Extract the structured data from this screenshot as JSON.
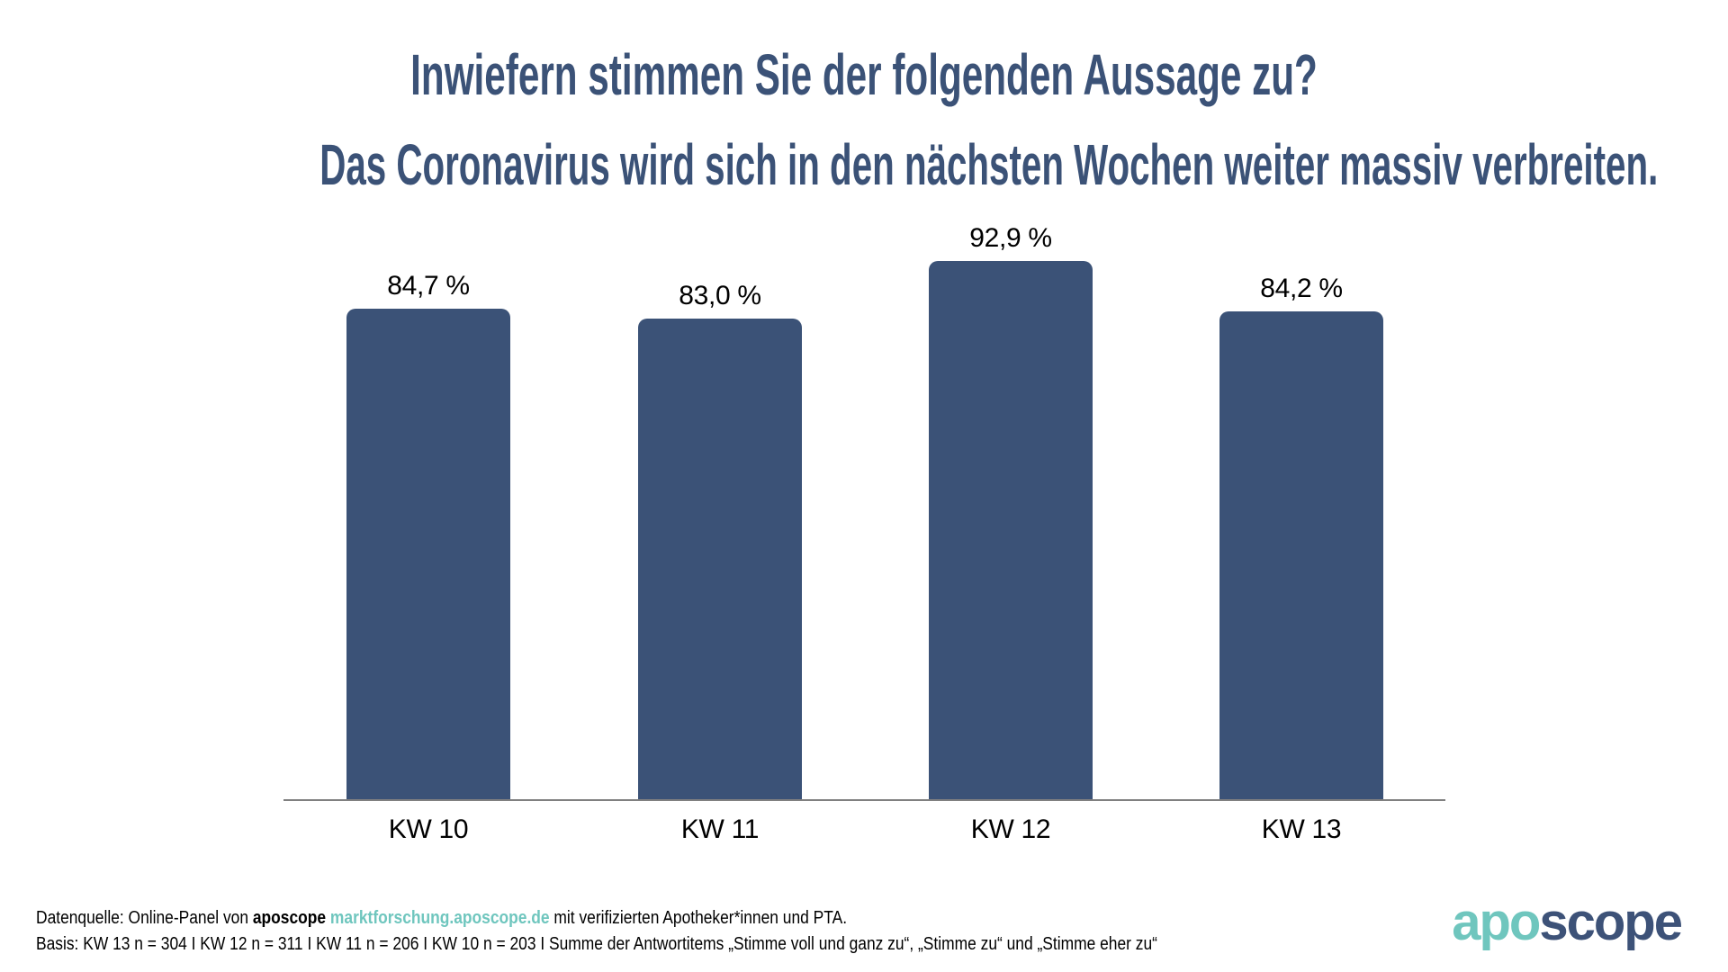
{
  "header": {
    "question": "Inwiefern stimmen Sie der folgenden Aussage zu?",
    "statement": "Das Coronavirus wird sich in den nächsten Wochen weiter massiv verbreiten."
  },
  "chart_data": {
    "type": "bar",
    "title": "Inwiefern stimmen Sie der folgenden Aussage zu?",
    "subtitle": "Das Coronavirus wird sich in den nächsten Wochen weiter massiv verbreiten.",
    "categories": [
      "KW 10",
      "KW 11",
      "KW 12",
      "KW 13"
    ],
    "values": [
      84.7,
      83.0,
      92.9,
      84.2
    ],
    "value_labels": [
      "84,7 %",
      "83,0 %",
      "92,9 %",
      "84,2 %"
    ],
    "unit": "%",
    "ylim": [
      0,
      100
    ],
    "bar_color": "#3B5277",
    "grid": "off",
    "y_axis": "hidden",
    "x_axis": "baseline only",
    "legend": "none",
    "value_label_position": "above bars",
    "xlabel": "",
    "ylabel": ""
  },
  "footer": {
    "line1": {
      "prefix": "Datenquelle: Online-Panel von ",
      "brand": "aposcope ",
      "link": "marktforschung.aposcope.de",
      "suffix": " mit verifizierten Apotheker*innen und PTA."
    },
    "line2": "Basis: KW 13 n = 304 I KW 12 n = 311 I KW 11 n = 206 I KW 10 n = 203 I Summe der Antwortitems „Stimme voll und ganz zu“, „Stimme zu“ und „Stimme eher zu“"
  },
  "logo": {
    "part1": "apo",
    "part2": "scope",
    "teal": "#6FC6BE",
    "navy": "#3D5278"
  },
  "colors": {
    "title": "#3B5277",
    "bar": "#3B5277",
    "link_teal": "#6FC6BE",
    "axis_gray": "#808080",
    "label_black": "#000000"
  }
}
